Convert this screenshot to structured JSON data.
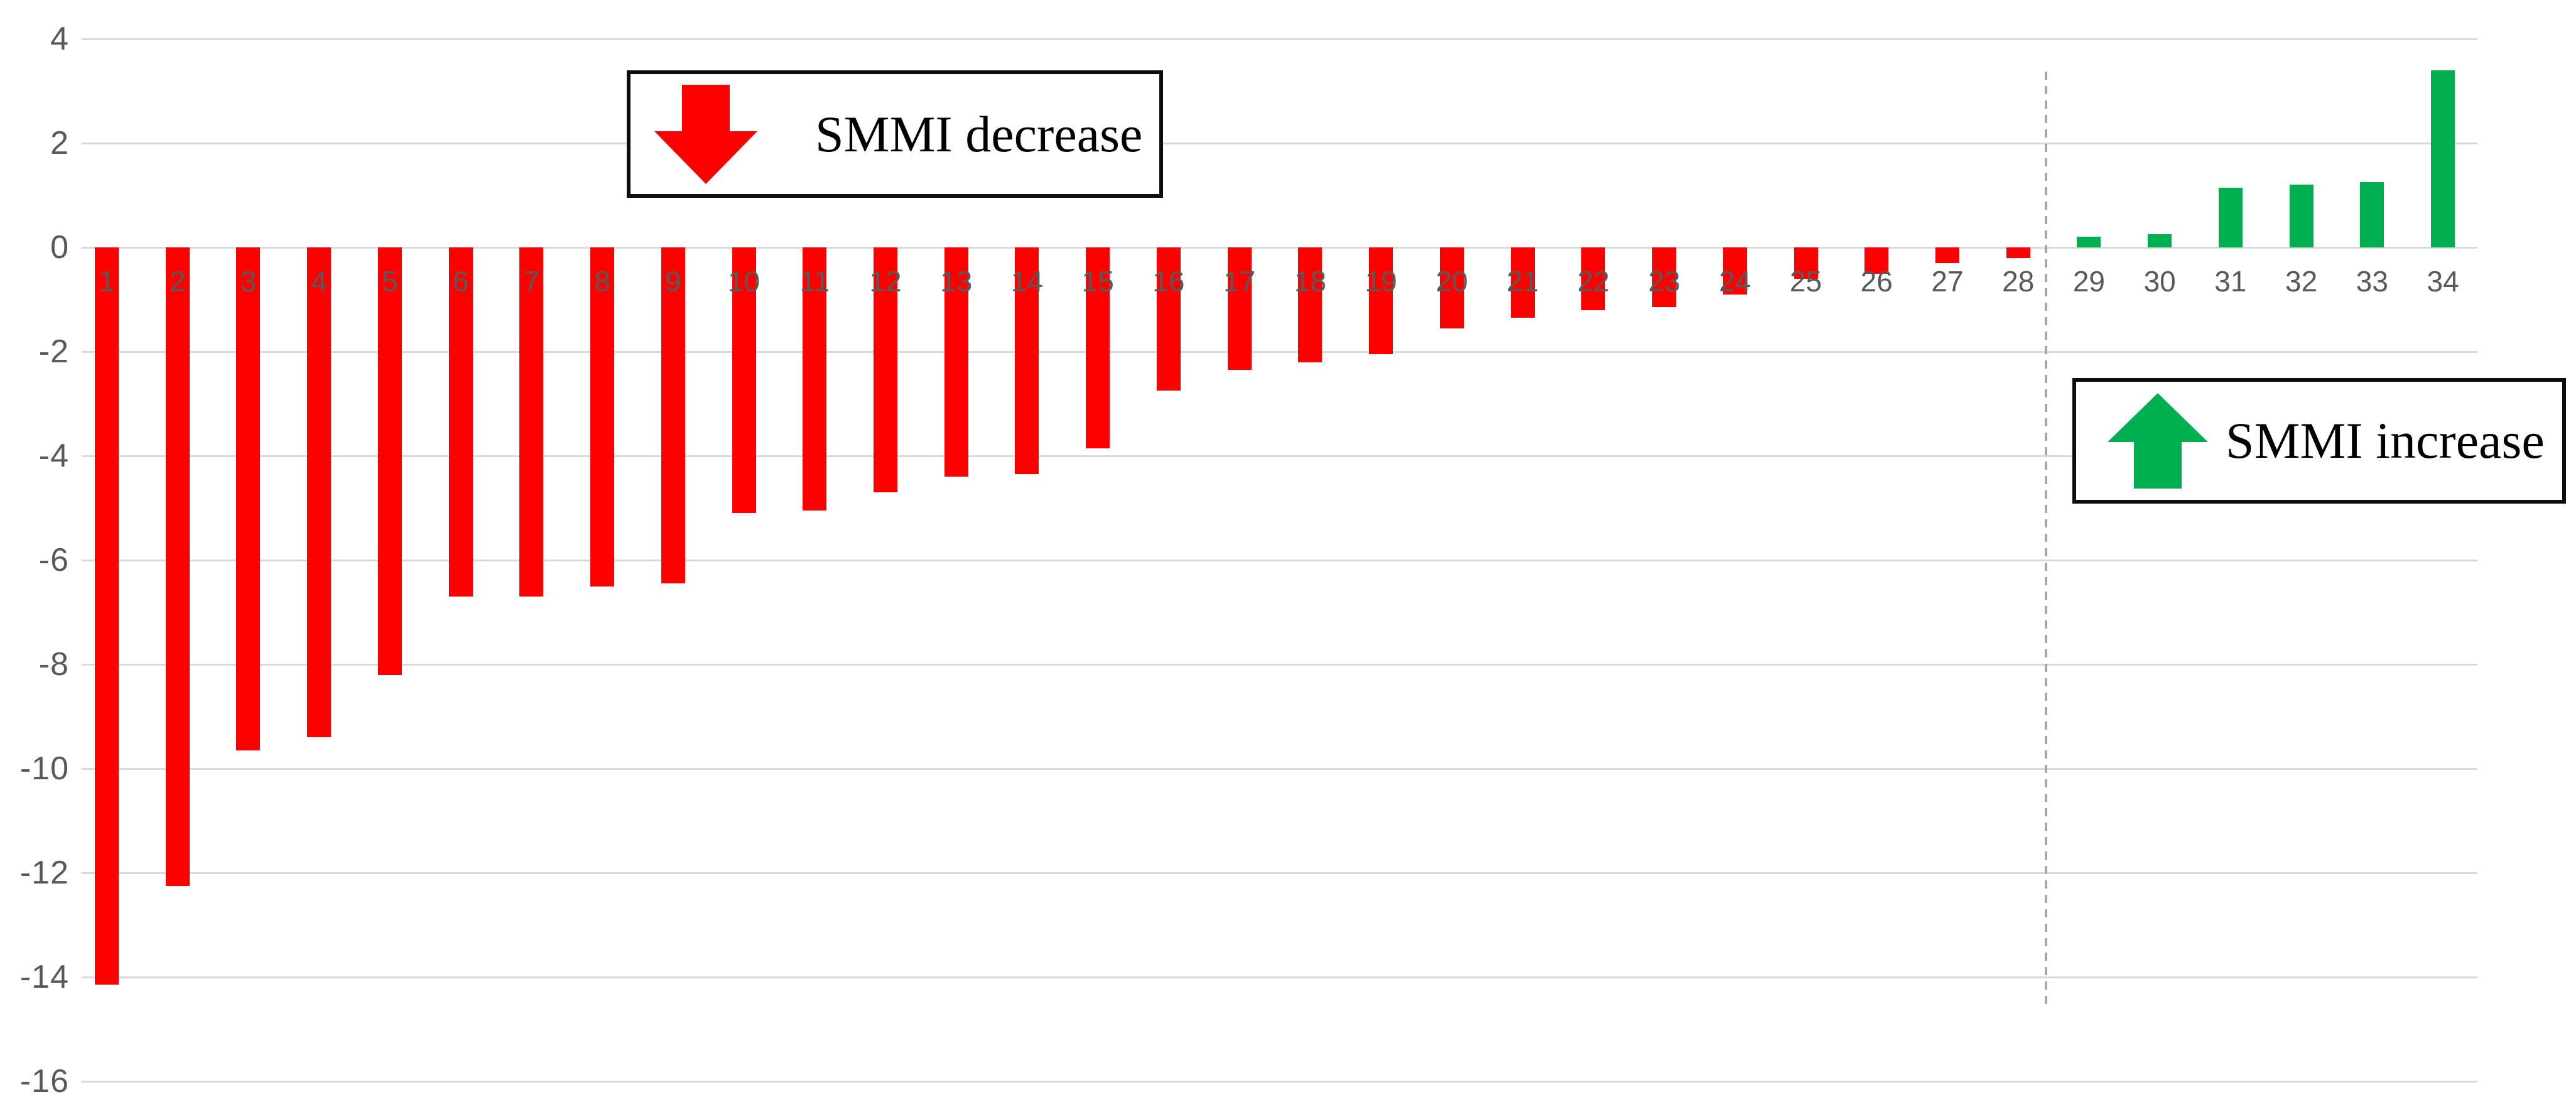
{
  "page": {
    "background": "#FFFFFF",
    "title": ""
  },
  "chart_data": {
    "type": "bar",
    "title": "",
    "xlabel": "",
    "ylabel": "",
    "categories": [
      "1",
      "2",
      "3",
      "4",
      "5",
      "6",
      "7",
      "8",
      "9",
      "10",
      "11",
      "12",
      "13",
      "14",
      "15",
      "16",
      "17",
      "18",
      "19",
      "20",
      "21",
      "22",
      "23",
      "24",
      "25",
      "26",
      "27",
      "28",
      "29",
      "30",
      "31",
      "32",
      "33",
      "34"
    ],
    "values": [
      -14.15,
      -12.25,
      -9.65,
      -9.4,
      -8.2,
      -6.7,
      -6.7,
      -6.5,
      -6.45,
      -5.1,
      -5.05,
      -4.7,
      -4.4,
      -4.35,
      -3.85,
      -2.75,
      -2.35,
      -2.2,
      -2.05,
      -1.55,
      -1.35,
      -1.2,
      -1.15,
      -0.9,
      -0.6,
      -0.5,
      -0.3,
      -0.2,
      0.2,
      0.25,
      1.15,
      1.2,
      1.25,
      3.4
    ],
    "ylim": [
      -16,
      4
    ],
    "yticks": [
      4,
      2,
      0,
      -2,
      -4,
      -6,
      -8,
      -10,
      -12,
      -14,
      -16
    ],
    "grid": true,
    "legend_position": "inside-callout-boxes",
    "divider": {
      "between_categories": [
        "28",
        "29"
      ],
      "style": "dashed"
    },
    "annotations": [
      {
        "label": "SMMI decrease",
        "arrow": "down",
        "color": "#FF0000"
      },
      {
        "label": "SMMI increase",
        "arrow": "up",
        "color": "#00B050"
      }
    ]
  },
  "colors": {
    "negative_bar": "#FF0000",
    "positive_bar": "#00B050",
    "gridline": "#D9D9D9",
    "axis_label": "#595959",
    "divider_line": "#A6A6A6",
    "legend_border": "#000000",
    "legend_text": "#000000"
  }
}
